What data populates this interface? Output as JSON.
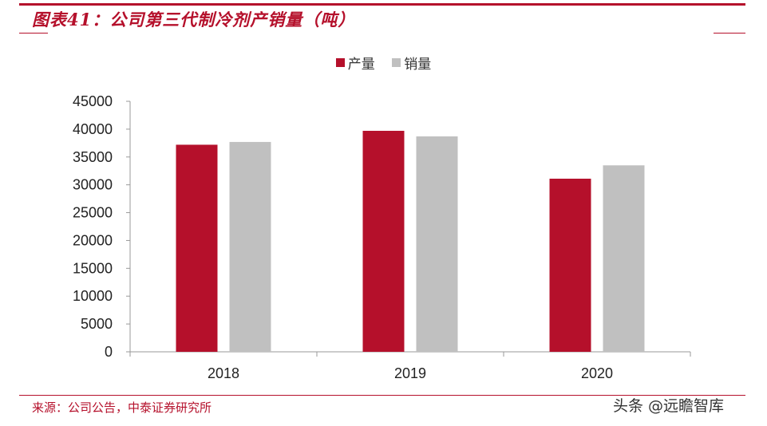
{
  "title": "图表41：公司第三代制冷剂产销量（吨）",
  "source": "来源：公司公告，中泰证券研究所",
  "watermark": "头条 @远瞻智库",
  "colors": {
    "accent": "#b5102b",
    "production": "#b5102b",
    "sales": "#c0c0c0"
  },
  "chart_data": {
    "type": "bar",
    "categories": [
      "2018",
      "2019",
      "2020"
    ],
    "series": [
      {
        "name": "产量",
        "values": [
          37200,
          39700,
          31100
        ]
      },
      {
        "name": "销量",
        "values": [
          37700,
          38700,
          33500
        ]
      }
    ],
    "ylim": [
      0,
      45000
    ],
    "yticks": [
      0,
      5000,
      10000,
      15000,
      20000,
      25000,
      30000,
      35000,
      40000,
      45000
    ],
    "grid": false,
    "legend_position": "top-center"
  }
}
